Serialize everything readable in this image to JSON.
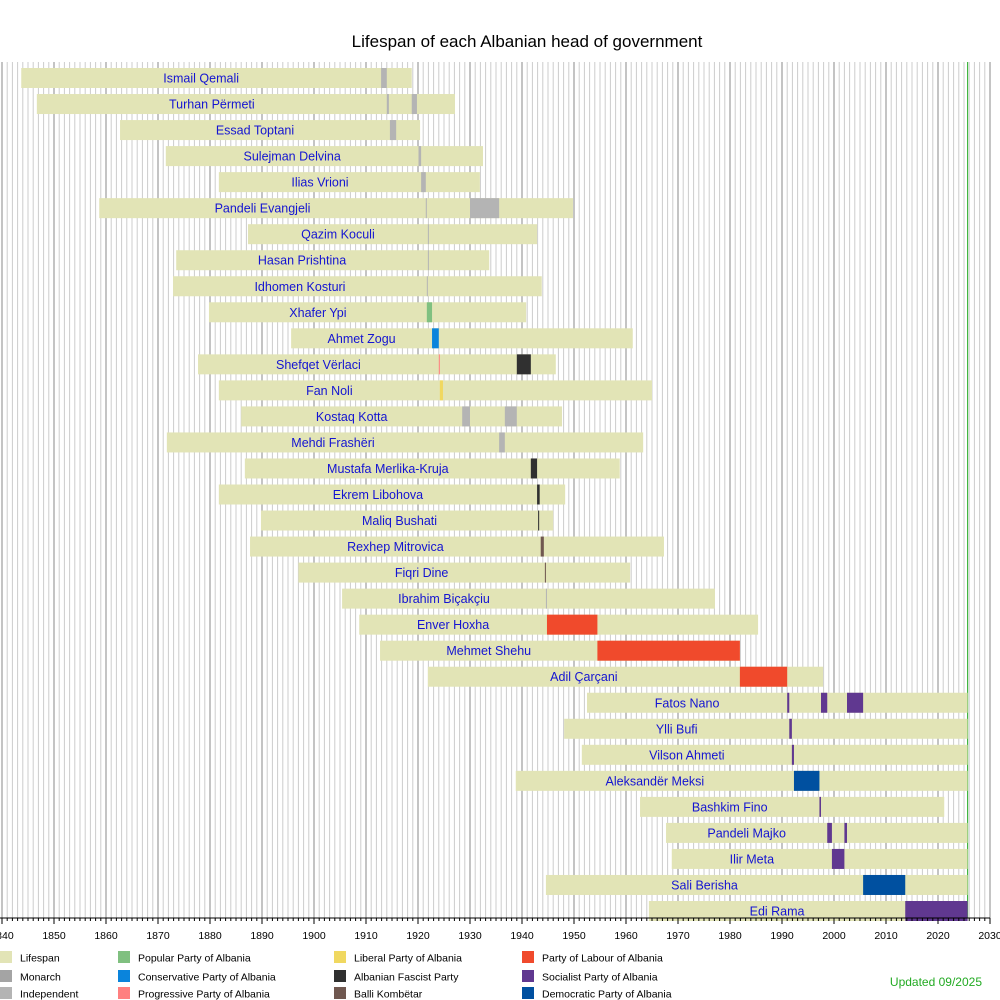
{
  "chart_data": {
    "type": "timeline",
    "title": "Lifespan of each Albanian head of government",
    "xlim": [
      1840,
      2030
    ],
    "x_ticks": [
      1840,
      1850,
      1860,
      1870,
      1880,
      1890,
      1900,
      1910,
      1920,
      1930,
      1940,
      1950,
      1960,
      1970,
      1980,
      1990,
      2000,
      2010,
      2020,
      2030
    ],
    "grid": "vertical, yearly",
    "current_date": 2025.7,
    "updated": "Updated 09/2025",
    "legend": [
      {
        "key": "lifespan",
        "label": "Lifespan",
        "color": "#e2e4b6"
      },
      {
        "key": "monarch",
        "label": "Monarch",
        "color": "#a4a4a4"
      },
      {
        "key": "independent",
        "label": "Independent",
        "color": "#b4b4b4"
      },
      {
        "key": "popular",
        "label": "Popular Party of Albania",
        "color": "#80c080"
      },
      {
        "key": "conservative",
        "label": "Conservative Party of Albania",
        "color": "#0a84dc"
      },
      {
        "key": "progressive",
        "label": "Progressive Party of Albania",
        "color": "#ff8080"
      },
      {
        "key": "liberal",
        "label": "Liberal Party of Albania",
        "color": "#f0d860"
      },
      {
        "key": "fascist",
        "label": "Albanian Fascist Party",
        "color": "#303030"
      },
      {
        "key": "balli",
        "label": "Balli Kombëtar",
        "color": "#705850"
      },
      {
        "key": "pla",
        "label": "Party of Labour of Albania",
        "color": "#f04a2c"
      },
      {
        "key": "socialist",
        "label": "Socialist Party of Albania",
        "color": "#603890"
      },
      {
        "key": "democratic",
        "label": "Democratic Party of Albania",
        "color": "#0050a0"
      }
    ],
    "people": [
      {
        "name": "Ismail Qemali",
        "born": 1843.7,
        "died": 1918.8,
        "terms": [
          [
            1912.9,
            1914.0,
            "independent"
          ]
        ]
      },
      {
        "name": "Turhan Përmeti",
        "born": 1846.7,
        "died": 1927.1,
        "terms": [
          [
            1914.0,
            1914.4,
            "independent"
          ],
          [
            1918.8,
            1919.8,
            "independent"
          ]
        ]
      },
      {
        "name": "Essad Toptani",
        "born": 1862.7,
        "died": 1920.4,
        "terms": [
          [
            1914.6,
            1915.8,
            "independent"
          ]
        ]
      },
      {
        "name": "Sulejman Delvina",
        "born": 1871.5,
        "died": 1932.5,
        "terms": [
          [
            1920.1,
            1920.6,
            "independent"
          ]
        ]
      },
      {
        "name": "Ilias Vrioni",
        "born": 1881.7,
        "died": 1931.9,
        "terms": [
          [
            1920.6,
            1921.5,
            "independent"
          ]
        ]
      },
      {
        "name": "Pandeli Evangjeli",
        "born": 1858.7,
        "died": 1949.8,
        "terms": [
          [
            1921.5,
            1921.7,
            "independent"
          ],
          [
            1930.0,
            1935.6,
            "independent"
          ]
        ]
      },
      {
        "name": "Qazim Koculi",
        "born": 1887.3,
        "died": 1942.9,
        "terms": [
          [
            1921.9,
            1922.0,
            "independent"
          ]
        ]
      },
      {
        "name": "Hasan Prishtina",
        "born": 1873.5,
        "died": 1933.7,
        "terms": [
          [
            1921.9,
            1922.0,
            "independent"
          ]
        ]
      },
      {
        "name": "Idhomen Kosturi",
        "born": 1872.9,
        "died": 1943.8,
        "terms": [
          [
            1921.7,
            1921.8,
            "independent"
          ]
        ]
      },
      {
        "name": "Xhafer Ypi",
        "born": 1879.8,
        "died": 1940.8,
        "terms": [
          [
            1921.7,
            1922.7,
            "popular"
          ]
        ]
      },
      {
        "name": "Ahmet Zogu",
        "born": 1895.6,
        "died": 1961.3,
        "terms": [
          [
            1922.7,
            1924.0,
            "conservative"
          ]
        ]
      },
      {
        "name": "Shefqet Vërlaci",
        "born": 1877.7,
        "died": 1946.5,
        "terms": [
          [
            1924.0,
            1924.2,
            "progressive"
          ],
          [
            1939.0,
            1941.7,
            "fascist"
          ]
        ]
      },
      {
        "name": "Fan Noli",
        "born": 1881.7,
        "died": 1965.0,
        "terms": [
          [
            1924.2,
            1924.8,
            "liberal"
          ]
        ]
      },
      {
        "name": "Kostaq Kotta",
        "born": 1886.0,
        "died": 1947.7,
        "terms": [
          [
            1928.5,
            1930.0,
            "independent"
          ],
          [
            1936.7,
            1939.0,
            "independent"
          ]
        ]
      },
      {
        "name": "Mehdi Frashëri",
        "born": 1871.7,
        "died": 1963.3,
        "terms": [
          [
            1935.6,
            1936.7,
            "independent"
          ]
        ]
      },
      {
        "name": "Mustafa Merlika-Kruja",
        "born": 1886.7,
        "died": 1958.8,
        "terms": [
          [
            1941.7,
            1942.9,
            "fascist"
          ]
        ]
      },
      {
        "name": "Ekrem Libohova",
        "born": 1881.7,
        "died": 1948.3,
        "terms": [
          [
            1942.9,
            1943.4,
            "fascist"
          ]
        ]
      },
      {
        "name": "Maliq Bushati",
        "born": 1889.8,
        "died": 1946.0,
        "terms": [
          [
            1943.1,
            1943.3,
            "fascist"
          ]
        ]
      },
      {
        "name": "Rexhep Mitrovica",
        "born": 1887.7,
        "died": 1967.3,
        "terms": [
          [
            1943.6,
            1944.2,
            "balli"
          ]
        ]
      },
      {
        "name": "Fiqri Dine",
        "born": 1897.0,
        "died": 1960.8,
        "terms": [
          [
            1944.4,
            1944.6,
            "balli"
          ]
        ]
      },
      {
        "name": "Ibrahim Biçakçiu",
        "born": 1905.4,
        "died": 1977.1,
        "terms": [
          [
            1944.6,
            1944.8,
            "independent"
          ]
        ]
      },
      {
        "name": "Enver Hoxha",
        "born": 1908.7,
        "died": 1985.4,
        "terms": [
          [
            1944.8,
            1954.5,
            "pla"
          ]
        ]
      },
      {
        "name": "Mehmet Shehu",
        "born": 1912.7,
        "died": 1981.9,
        "terms": [
          [
            1954.5,
            1981.9,
            "pla"
          ]
        ]
      },
      {
        "name": "Adil Çarçani",
        "born": 1921.9,
        "died": 1997.9,
        "terms": [
          [
            1981.9,
            1991.0,
            "pla"
          ]
        ]
      },
      {
        "name": "Fatos Nano",
        "born": 1952.5,
        "died": null,
        "terms": [
          [
            1991.0,
            1991.4,
            "socialist"
          ],
          [
            1997.5,
            1998.7,
            "socialist"
          ],
          [
            2002.5,
            2005.6,
            "socialist"
          ]
        ]
      },
      {
        "name": "Ylli Bufi",
        "born": 1948.1,
        "died": null,
        "terms": [
          [
            1991.4,
            1991.9,
            "socialist"
          ]
        ]
      },
      {
        "name": "Vilson Ahmeti",
        "born": 1951.5,
        "died": null,
        "terms": [
          [
            1991.9,
            1992.3,
            "socialist"
          ]
        ]
      },
      {
        "name": "Aleksandër Meksi",
        "born": 1938.8,
        "died": null,
        "terms": [
          [
            1992.3,
            1997.2,
            "democratic"
          ]
        ]
      },
      {
        "name": "Bashkim Fino",
        "born": 1962.7,
        "died": 2021.2,
        "terms": [
          [
            1997.2,
            1997.5,
            "socialist"
          ]
        ]
      },
      {
        "name": "Pandeli Majko",
        "born": 1967.7,
        "died": null,
        "terms": [
          [
            1998.7,
            1999.6,
            "socialist"
          ],
          [
            2002.0,
            2002.5,
            "socialist"
          ]
        ]
      },
      {
        "name": "Ilir Meta",
        "born": 1968.8,
        "died": null,
        "terms": [
          [
            1999.6,
            2002.0,
            "socialist"
          ]
        ]
      },
      {
        "name": "Sali Berisha",
        "born": 1944.6,
        "died": null,
        "terms": [
          [
            2005.6,
            2013.7,
            "democratic"
          ]
        ]
      },
      {
        "name": "Edi Rama",
        "born": 1964.4,
        "died": null,
        "terms": [
          [
            2013.7,
            2025.7,
            "socialist"
          ]
        ]
      }
    ]
  }
}
